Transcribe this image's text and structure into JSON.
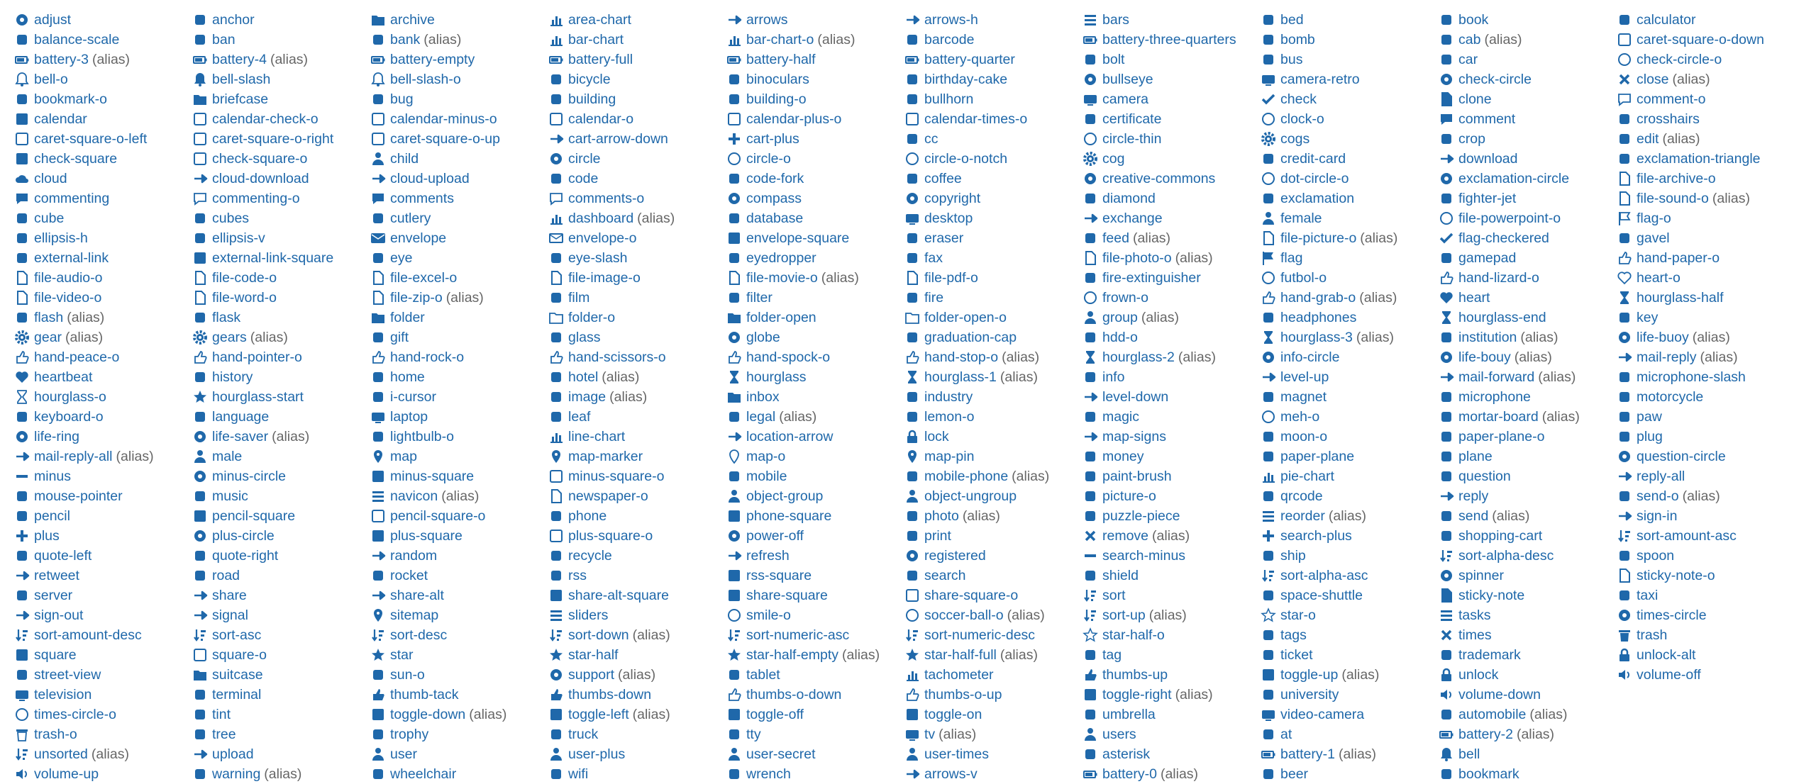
{
  "colors": {
    "link": "#1f68aa",
    "icon": "#1f68aa",
    "alias": "#666666",
    "background": "#ffffff"
  },
  "alias_text": "(alias)",
  "icons": [
    {
      "name": "adjust"
    },
    {
      "name": "balance-scale"
    },
    {
      "name": "battery-3",
      "alias": true
    },
    {
      "name": "bell-o"
    },
    {
      "name": "bookmark-o"
    },
    {
      "name": "calendar"
    },
    {
      "name": "caret-square-o-left"
    },
    {
      "name": "check-square"
    },
    {
      "name": "cloud"
    },
    {
      "name": "commenting"
    },
    {
      "name": "cube"
    },
    {
      "name": "ellipsis-h"
    },
    {
      "name": "external-link"
    },
    {
      "name": "file-audio-o"
    },
    {
      "name": "file-video-o"
    },
    {
      "name": "flash",
      "alias": true
    },
    {
      "name": "gear",
      "alias": true
    },
    {
      "name": "hand-peace-o"
    },
    {
      "name": "heartbeat"
    },
    {
      "name": "hourglass-o"
    },
    {
      "name": "keyboard-o"
    },
    {
      "name": "life-ring"
    },
    {
      "name": "mail-reply-all",
      "alias": true
    },
    {
      "name": "minus"
    },
    {
      "name": "mouse-pointer"
    },
    {
      "name": "pencil"
    },
    {
      "name": "plus"
    },
    {
      "name": "quote-left"
    },
    {
      "name": "retweet"
    },
    {
      "name": "server"
    },
    {
      "name": "sign-out"
    },
    {
      "name": "sort-amount-desc"
    },
    {
      "name": "square"
    },
    {
      "name": "street-view"
    },
    {
      "name": "television"
    },
    {
      "name": "times-circle-o"
    },
    {
      "name": "trash-o"
    },
    {
      "name": "unsorted",
      "alias": true
    },
    {
      "name": "volume-up"
    },
    {
      "name": "anchor"
    },
    {
      "name": "ban"
    },
    {
      "name": "battery-4",
      "alias": true
    },
    {
      "name": "bell-slash"
    },
    {
      "name": "briefcase"
    },
    {
      "name": "calendar-check-o"
    },
    {
      "name": "caret-square-o-right"
    },
    {
      "name": "check-square-o"
    },
    {
      "name": "cloud-download"
    },
    {
      "name": "commenting-o"
    },
    {
      "name": "cubes"
    },
    {
      "name": "ellipsis-v"
    },
    {
      "name": "external-link-square"
    },
    {
      "name": "file-code-o"
    },
    {
      "name": "file-word-o"
    },
    {
      "name": "flask"
    },
    {
      "name": "gears",
      "alias": true
    },
    {
      "name": "hand-pointer-o"
    },
    {
      "name": "history"
    },
    {
      "name": "hourglass-start"
    },
    {
      "name": "language"
    },
    {
      "name": "life-saver",
      "alias": true
    },
    {
      "name": "male"
    },
    {
      "name": "minus-circle"
    },
    {
      "name": "music"
    },
    {
      "name": "pencil-square"
    },
    {
      "name": "plus-circle"
    },
    {
      "name": "quote-right"
    },
    {
      "name": "road"
    },
    {
      "name": "share"
    },
    {
      "name": "signal"
    },
    {
      "name": "sort-asc"
    },
    {
      "name": "square-o"
    },
    {
      "name": "suitcase"
    },
    {
      "name": "terminal"
    },
    {
      "name": "tint"
    },
    {
      "name": "tree"
    },
    {
      "name": "upload"
    },
    {
      "name": "warning",
      "alias": true
    },
    {
      "name": "archive"
    },
    {
      "name": "bank",
      "alias": true
    },
    {
      "name": "battery-empty"
    },
    {
      "name": "bell-slash-o"
    },
    {
      "name": "bug"
    },
    {
      "name": "calendar-minus-o"
    },
    {
      "name": "caret-square-o-up"
    },
    {
      "name": "child"
    },
    {
      "name": "cloud-upload"
    },
    {
      "name": "comments"
    },
    {
      "name": "cutlery"
    },
    {
      "name": "envelope"
    },
    {
      "name": "eye"
    },
    {
      "name": "file-excel-o"
    },
    {
      "name": "file-zip-o",
      "alias": true
    },
    {
      "name": "folder"
    },
    {
      "name": "gift"
    },
    {
      "name": "hand-rock-o"
    },
    {
      "name": "home"
    },
    {
      "name": "i-cursor"
    },
    {
      "name": "laptop"
    },
    {
      "name": "lightbulb-o"
    },
    {
      "name": "map"
    },
    {
      "name": "minus-square"
    },
    {
      "name": "navicon",
      "alias": true
    },
    {
      "name": "pencil-square-o"
    },
    {
      "name": "plus-square"
    },
    {
      "name": "random"
    },
    {
      "name": "rocket"
    },
    {
      "name": "share-alt"
    },
    {
      "name": "sitemap"
    },
    {
      "name": "sort-desc"
    },
    {
      "name": "star"
    },
    {
      "name": "sun-o"
    },
    {
      "name": "thumb-tack"
    },
    {
      "name": "toggle-down",
      "alias": true
    },
    {
      "name": "trophy"
    },
    {
      "name": "user"
    },
    {
      "name": "wheelchair"
    },
    {
      "name": "area-chart"
    },
    {
      "name": "bar-chart"
    },
    {
      "name": "battery-full"
    },
    {
      "name": "bicycle"
    },
    {
      "name": "building"
    },
    {
      "name": "calendar-o"
    },
    {
      "name": "cart-arrow-down"
    },
    {
      "name": "circle"
    },
    {
      "name": "code"
    },
    {
      "name": "comments-o"
    },
    {
      "name": "dashboard",
      "alias": true
    },
    {
      "name": "envelope-o"
    },
    {
      "name": "eye-slash"
    },
    {
      "name": "file-image-o"
    },
    {
      "name": "film"
    },
    {
      "name": "folder-o"
    },
    {
      "name": "glass"
    },
    {
      "name": "hand-scissors-o"
    },
    {
      "name": "hotel",
      "alias": true
    },
    {
      "name": "image",
      "alias": true
    },
    {
      "name": "leaf"
    },
    {
      "name": "line-chart"
    },
    {
      "name": "map-marker"
    },
    {
      "name": "minus-square-o"
    },
    {
      "name": "newspaper-o"
    },
    {
      "name": "phone"
    },
    {
      "name": "plus-square-o"
    },
    {
      "name": "recycle"
    },
    {
      "name": "rss"
    },
    {
      "name": "share-alt-square"
    },
    {
      "name": "sliders"
    },
    {
      "name": "sort-down",
      "alias": true
    },
    {
      "name": "star-half"
    },
    {
      "name": "support",
      "alias": true
    },
    {
      "name": "thumbs-down"
    },
    {
      "name": "toggle-left",
      "alias": true
    },
    {
      "name": "truck"
    },
    {
      "name": "user-plus"
    },
    {
      "name": "wifi"
    },
    {
      "name": "arrows"
    },
    {
      "name": "bar-chart-o",
      "alias": true
    },
    {
      "name": "battery-half"
    },
    {
      "name": "binoculars"
    },
    {
      "name": "building-o"
    },
    {
      "name": "calendar-plus-o"
    },
    {
      "name": "cart-plus"
    },
    {
      "name": "circle-o"
    },
    {
      "name": "code-fork"
    },
    {
      "name": "compass"
    },
    {
      "name": "database"
    },
    {
      "name": "envelope-square"
    },
    {
      "name": "eyedropper"
    },
    {
      "name": "file-movie-o",
      "alias": true
    },
    {
      "name": "filter"
    },
    {
      "name": "folder-open"
    },
    {
      "name": "globe"
    },
    {
      "name": "hand-spock-o"
    },
    {
      "name": "hourglass"
    },
    {
      "name": "inbox"
    },
    {
      "name": "legal",
      "alias": true
    },
    {
      "name": "location-arrow"
    },
    {
      "name": "map-o"
    },
    {
      "name": "mobile"
    },
    {
      "name": "object-group"
    },
    {
      "name": "phone-square"
    },
    {
      "name": "power-off"
    },
    {
      "name": "refresh"
    },
    {
      "name": "rss-square"
    },
    {
      "name": "share-square"
    },
    {
      "name": "smile-o"
    },
    {
      "name": "sort-numeric-asc"
    },
    {
      "name": "star-half-empty",
      "alias": true
    },
    {
      "name": "tablet"
    },
    {
      "name": "thumbs-o-down"
    },
    {
      "name": "toggle-off"
    },
    {
      "name": "tty"
    },
    {
      "name": "user-secret"
    },
    {
      "name": "wrench"
    },
    {
      "name": "arrows-h"
    },
    {
      "name": "barcode"
    },
    {
      "name": "battery-quarter"
    },
    {
      "name": "birthday-cake"
    },
    {
      "name": "bullhorn"
    },
    {
      "name": "calendar-times-o"
    },
    {
      "name": "cc"
    },
    {
      "name": "circle-o-notch"
    },
    {
      "name": "coffee"
    },
    {
      "name": "copyright"
    },
    {
      "name": "desktop"
    },
    {
      "name": "eraser"
    },
    {
      "name": "fax"
    },
    {
      "name": "file-pdf-o"
    },
    {
      "name": "fire"
    },
    {
      "name": "folder-open-o"
    },
    {
      "name": "graduation-cap"
    },
    {
      "name": "hand-stop-o",
      "alias": true
    },
    {
      "name": "hourglass-1",
      "alias": true
    },
    {
      "name": "industry"
    },
    {
      "name": "lemon-o"
    },
    {
      "name": "lock"
    },
    {
      "name": "map-pin"
    },
    {
      "name": "mobile-phone",
      "alias": true
    },
    {
      "name": "object-ungroup"
    },
    {
      "name": "photo",
      "alias": true
    },
    {
      "name": "print"
    },
    {
      "name": "registered"
    },
    {
      "name": "search"
    },
    {
      "name": "share-square-o"
    },
    {
      "name": "soccer-ball-o",
      "alias": true
    },
    {
      "name": "sort-numeric-desc"
    },
    {
      "name": "star-half-full",
      "alias": true
    },
    {
      "name": "tachometer"
    },
    {
      "name": "thumbs-o-up"
    },
    {
      "name": "toggle-on"
    },
    {
      "name": "tv",
      "alias": true
    },
    {
      "name": "user-times"
    },
    {
      "name": "arrows-v"
    },
    {
      "name": "bars"
    },
    {
      "name": "battery-three-quarters"
    },
    {
      "name": "bolt"
    },
    {
      "name": "bullseye"
    },
    {
      "name": "camera"
    },
    {
      "name": "certificate"
    },
    {
      "name": "circle-thin"
    },
    {
      "name": "cog"
    },
    {
      "name": "creative-commons"
    },
    {
      "name": "diamond"
    },
    {
      "name": "exchange"
    },
    {
      "name": "feed",
      "alias": true
    },
    {
      "name": "file-photo-o",
      "alias": true
    },
    {
      "name": "fire-extinguisher"
    },
    {
      "name": "frown-o"
    },
    {
      "name": "group",
      "alias": true
    },
    {
      "name": "hdd-o"
    },
    {
      "name": "hourglass-2",
      "alias": true
    },
    {
      "name": "info"
    },
    {
      "name": "level-down"
    },
    {
      "name": "magic"
    },
    {
      "name": "map-signs"
    },
    {
      "name": "money"
    },
    {
      "name": "paint-brush"
    },
    {
      "name": "picture-o"
    },
    {
      "name": "puzzle-piece"
    },
    {
      "name": "remove",
      "alias": true
    },
    {
      "name": "search-minus"
    },
    {
      "name": "shield"
    },
    {
      "name": "sort"
    },
    {
      "name": "sort-up",
      "alias": true
    },
    {
      "name": "star-half-o"
    },
    {
      "name": "tag"
    },
    {
      "name": "thumbs-up"
    },
    {
      "name": "toggle-right",
      "alias": true
    },
    {
      "name": "umbrella"
    },
    {
      "name": "users"
    },
    {
      "name": "asterisk"
    },
    {
      "name": "battery-0",
      "alias": true
    },
    {
      "name": "bed"
    },
    {
      "name": "bomb"
    },
    {
      "name": "bus"
    },
    {
      "name": "camera-retro"
    },
    {
      "name": "check"
    },
    {
      "name": "clock-o"
    },
    {
      "name": "cogs"
    },
    {
      "name": "credit-card"
    },
    {
      "name": "dot-circle-o"
    },
    {
      "name": "exclamation"
    },
    {
      "name": "female"
    },
    {
      "name": "file-picture-o",
      "alias": true
    },
    {
      "name": "flag"
    },
    {
      "name": "futbol-o"
    },
    {
      "name": "hand-grab-o",
      "alias": true
    },
    {
      "name": "headphones"
    },
    {
      "name": "hourglass-3",
      "alias": true
    },
    {
      "name": "info-circle"
    },
    {
      "name": "level-up"
    },
    {
      "name": "magnet"
    },
    {
      "name": "meh-o"
    },
    {
      "name": "moon-o"
    },
    {
      "name": "paper-plane"
    },
    {
      "name": "pie-chart"
    },
    {
      "name": "qrcode"
    },
    {
      "name": "reorder",
      "alias": true
    },
    {
      "name": "search-plus"
    },
    {
      "name": "ship"
    },
    {
      "name": "sort-alpha-asc"
    },
    {
      "name": "space-shuttle"
    },
    {
      "name": "star-o"
    },
    {
      "name": "tags"
    },
    {
      "name": "ticket"
    },
    {
      "name": "toggle-up",
      "alias": true
    },
    {
      "name": "university"
    },
    {
      "name": "video-camera"
    },
    {
      "name": "at"
    },
    {
      "name": "battery-1",
      "alias": true
    },
    {
      "name": "beer"
    },
    {
      "name": "book"
    },
    {
      "name": "cab",
      "alias": true
    },
    {
      "name": "car"
    },
    {
      "name": "check-circle"
    },
    {
      "name": "clone"
    },
    {
      "name": "comment"
    },
    {
      "name": "crop"
    },
    {
      "name": "download"
    },
    {
      "name": "exclamation-circle"
    },
    {
      "name": "fighter-jet"
    },
    {
      "name": "file-powerpoint-o"
    },
    {
      "name": "flag-checkered"
    },
    {
      "name": "gamepad"
    },
    {
      "name": "hand-lizard-o"
    },
    {
      "name": "heart"
    },
    {
      "name": "hourglass-end"
    },
    {
      "name": "institution",
      "alias": true
    },
    {
      "name": "life-bouy",
      "alias": true
    },
    {
      "name": "mail-forward",
      "alias": true
    },
    {
      "name": "microphone"
    },
    {
      "name": "mortar-board",
      "alias": true
    },
    {
      "name": "paper-plane-o"
    },
    {
      "name": "plane"
    },
    {
      "name": "question"
    },
    {
      "name": "reply"
    },
    {
      "name": "send",
      "alias": true
    },
    {
      "name": "shopping-cart"
    },
    {
      "name": "sort-alpha-desc"
    },
    {
      "name": "spinner"
    },
    {
      "name": "sticky-note"
    },
    {
      "name": "tasks"
    },
    {
      "name": "times"
    },
    {
      "name": "trademark"
    },
    {
      "name": "unlock"
    },
    {
      "name": "volume-down"
    },
    {
      "name": "automobile",
      "alias": true
    },
    {
      "name": "battery-2",
      "alias": true
    },
    {
      "name": "bell"
    },
    {
      "name": "bookmark"
    },
    {
      "name": "calculator"
    },
    {
      "name": "caret-square-o-down"
    },
    {
      "name": "check-circle-o"
    },
    {
      "name": "close",
      "alias": true
    },
    {
      "name": "comment-o"
    },
    {
      "name": "crosshairs"
    },
    {
      "name": "edit",
      "alias": true
    },
    {
      "name": "exclamation-triangle"
    },
    {
      "name": "file-archive-o"
    },
    {
      "name": "file-sound-o",
      "alias": true
    },
    {
      "name": "flag-o"
    },
    {
      "name": "gavel"
    },
    {
      "name": "hand-paper-o"
    },
    {
      "name": "heart-o"
    },
    {
      "name": "hourglass-half"
    },
    {
      "name": "key"
    },
    {
      "name": "life-buoy",
      "alias": true
    },
    {
      "name": "mail-reply",
      "alias": true
    },
    {
      "name": "microphone-slash"
    },
    {
      "name": "motorcycle"
    },
    {
      "name": "paw"
    },
    {
      "name": "plug"
    },
    {
      "name": "question-circle"
    },
    {
      "name": "reply-all"
    },
    {
      "name": "send-o",
      "alias": true
    },
    {
      "name": "sign-in"
    },
    {
      "name": "sort-amount-asc"
    },
    {
      "name": "spoon"
    },
    {
      "name": "sticky-note-o"
    },
    {
      "name": "taxi"
    },
    {
      "name": "times-circle"
    },
    {
      "name": "trash"
    },
    {
      "name": "unlock-alt"
    },
    {
      "name": "volume-off"
    }
  ]
}
